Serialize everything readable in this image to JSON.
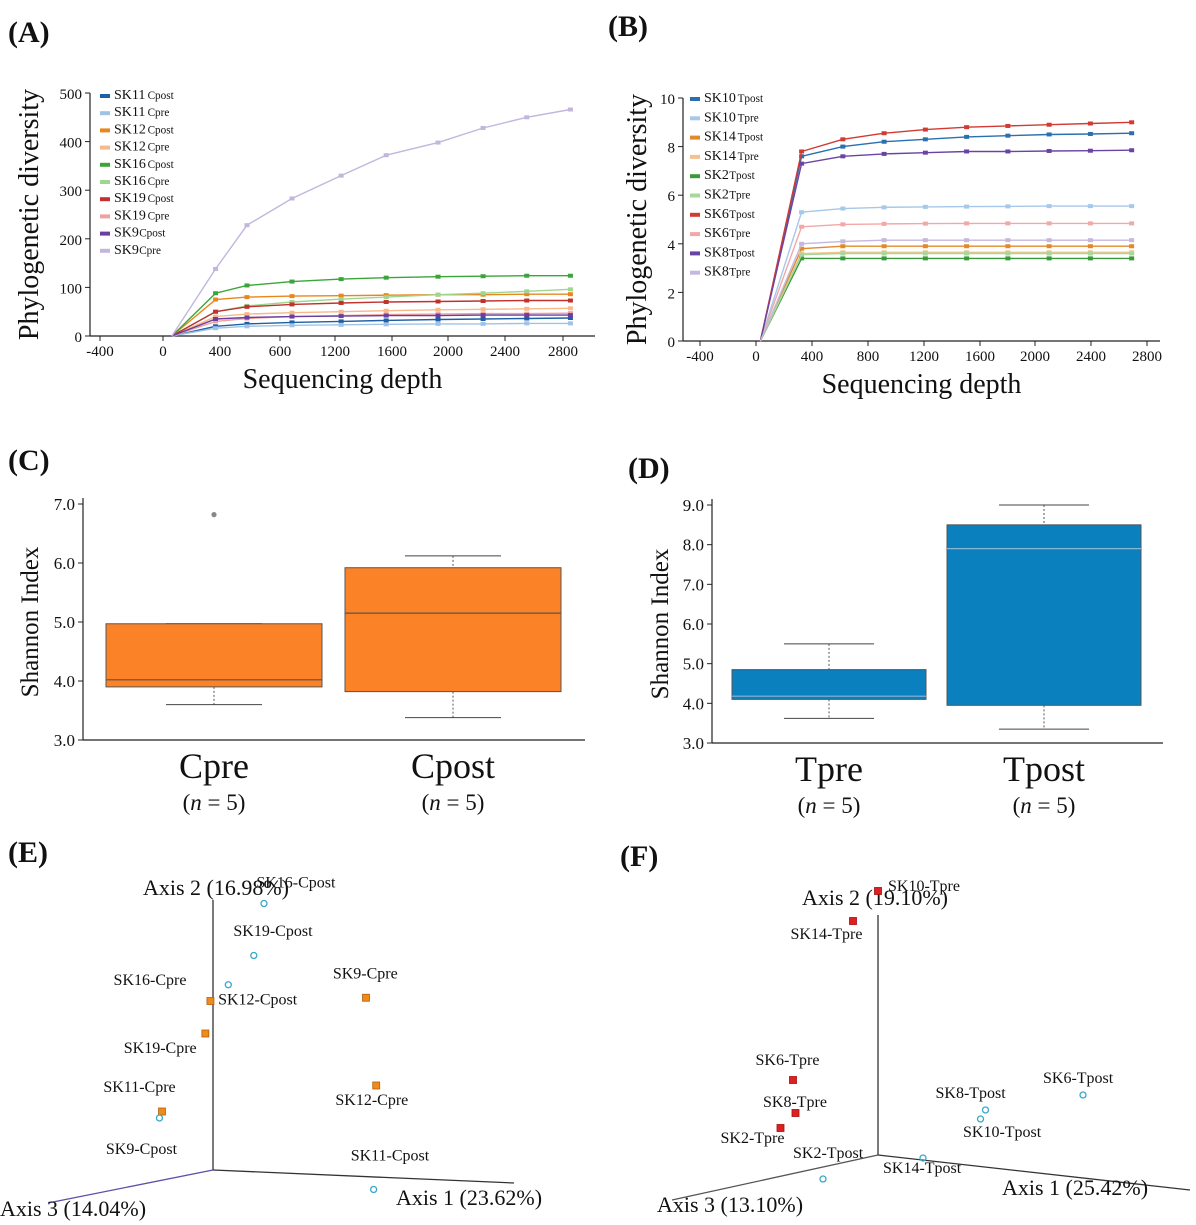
{
  "chart_data": [
    {
      "type": "line",
      "panel_label": "(A)",
      "title": "",
      "xlabel": "Sequencing depth",
      "ylabel": "Phylogenetic diversity",
      "xlim": [
        -600,
        3100
      ],
      "ylim": [
        0,
        500
      ],
      "xticks": [
        -400,
        0,
        400,
        600,
        1200,
        1600,
        2000,
        2400,
        2800
      ],
      "yticks": [
        0,
        100,
        200,
        300,
        400,
        500
      ],
      "x": [
        0,
        320,
        550,
        880,
        1240,
        1570,
        1950,
        2280,
        2600,
        2920
      ],
      "series": [
        {
          "name": "SK11",
          "sub": "Cpost",
          "color": "#1f5fa6",
          "values": [
            0,
            20,
            25,
            28,
            30,
            32,
            34,
            35,
            36,
            37
          ]
        },
        {
          "name": "SK11",
          "sub": "Cpre",
          "color": "#9ec3e6",
          "values": [
            0,
            16,
            20,
            22,
            23,
            24,
            25,
            25,
            26,
            26
          ]
        },
        {
          "name": "SK12",
          "sub": "Cpost",
          "color": "#e8871e",
          "values": [
            0,
            75,
            80,
            82,
            83,
            84,
            85,
            85,
            86,
            86
          ]
        },
        {
          "name": "SK12",
          "sub": "Cpre",
          "color": "#f5b98a",
          "values": [
            0,
            40,
            45,
            48,
            50,
            52,
            54,
            55,
            56,
            57
          ]
        },
        {
          "name": "SK16",
          "sub": "Cpost",
          "color": "#3aa63a",
          "values": [
            0,
            88,
            104,
            112,
            117,
            120,
            122,
            123,
            124,
            124
          ]
        },
        {
          "name": "SK16",
          "sub": "Cpre",
          "color": "#9fd68f",
          "values": [
            0,
            50,
            62,
            70,
            76,
            80,
            85,
            88,
            92,
            96
          ]
        },
        {
          "name": "SK19",
          "sub": "Cpost",
          "color": "#c0322e",
          "values": [
            0,
            50,
            60,
            65,
            68,
            70,
            71,
            72,
            73,
            73
          ]
        },
        {
          "name": "SK19",
          "sub": "Cpre",
          "color": "#f0a0a0",
          "values": [
            0,
            30,
            36,
            40,
            42,
            44,
            45,
            46,
            46,
            47
          ]
        },
        {
          "name": "SK9",
          "sub": "Cpost",
          "color": "#6b3fa0",
          "values": [
            0,
            35,
            38,
            40,
            41,
            42,
            42,
            43,
            43,
            43
          ]
        },
        {
          "name": "SK9",
          "sub": "Cpre",
          "color": "#c2b6dc",
          "values": [
            0,
            138,
            228,
            283,
            330,
            372,
            398,
            428,
            450,
            466
          ]
        }
      ]
    },
    {
      "type": "line",
      "panel_label": "(B)",
      "title": "",
      "xlabel": "Sequencing depth",
      "ylabel": "Phylogenetic diversity",
      "xlim": [
        -600,
        3100
      ],
      "ylim": [
        0,
        10
      ],
      "xticks": [
        -400,
        0,
        400,
        800,
        1200,
        1600,
        2000,
        2400,
        2800
      ],
      "yticks": [
        0,
        2,
        4,
        6,
        8,
        10
      ],
      "x": [
        0,
        320,
        640,
        960,
        1280,
        1600,
        1920,
        2240,
        2560,
        2880
      ],
      "series": [
        {
          "name": "SK10",
          "sub": "Tpost",
          "color": "#2a6fb0",
          "values": [
            0,
            7.6,
            8.0,
            8.2,
            8.3,
            8.4,
            8.45,
            8.5,
            8.52,
            8.55
          ]
        },
        {
          "name": "SK10",
          "sub": "Tpre",
          "color": "#a6c8ea",
          "values": [
            0,
            5.3,
            5.45,
            5.5,
            5.52,
            5.53,
            5.54,
            5.55,
            5.55,
            5.55
          ]
        },
        {
          "name": "SK14",
          "sub": "Tpost",
          "color": "#e08a2c",
          "values": [
            0,
            3.8,
            3.9,
            3.9,
            3.9,
            3.9,
            3.9,
            3.9,
            3.9,
            3.9
          ]
        },
        {
          "name": "SK14",
          "sub": "Tpre",
          "color": "#f3c28f",
          "values": [
            0,
            3.6,
            3.65,
            3.65,
            3.65,
            3.65,
            3.65,
            3.65,
            3.65,
            3.65
          ]
        },
        {
          "name": "SK2",
          "sub": "Tpost",
          "color": "#3a9a3a",
          "values": [
            0,
            3.4,
            3.4,
            3.4,
            3.4,
            3.4,
            3.4,
            3.4,
            3.4,
            3.4
          ]
        },
        {
          "name": "SK2",
          "sub": "Tpre",
          "color": "#a8d79a",
          "values": [
            0,
            3.55,
            3.6,
            3.6,
            3.6,
            3.6,
            3.6,
            3.6,
            3.6,
            3.6
          ]
        },
        {
          "name": "SK6",
          "sub": "Tpost",
          "color": "#d23a34",
          "values": [
            0,
            7.8,
            8.3,
            8.55,
            8.7,
            8.8,
            8.85,
            8.9,
            8.95,
            9.0
          ]
        },
        {
          "name": "SK6",
          "sub": "Tpre",
          "color": "#f2a8a8",
          "values": [
            0,
            4.7,
            4.8,
            4.82,
            4.83,
            4.84,
            4.84,
            4.84,
            4.84,
            4.84
          ]
        },
        {
          "name": "SK8",
          "sub": "Tpost",
          "color": "#6a44a3",
          "values": [
            0,
            7.3,
            7.6,
            7.7,
            7.75,
            7.8,
            7.8,
            7.82,
            7.83,
            7.85
          ]
        },
        {
          "name": "SK8",
          "sub": "Tpre",
          "color": "#c4b8de",
          "values": [
            0,
            4.0,
            4.1,
            4.15,
            4.15,
            4.15,
            4.15,
            4.15,
            4.15,
            4.15
          ]
        }
      ]
    },
    {
      "type": "box",
      "panel_label": "(C)",
      "title": "",
      "xlabel": "",
      "ylabel": "Shannon Index",
      "ylim": [
        3.0,
        7.0
      ],
      "yticks": [
        "3.0",
        "4.0",
        "5.0",
        "6.0",
        "7.0"
      ],
      "color": "#fc8228",
      "groups": [
        {
          "name": "Cpre",
          "n_label": "(",
          "n_var": "n",
          "n_eq": " = 5)",
          "min": 3.6,
          "q1": 3.9,
          "median": 4.02,
          "q3": 4.97,
          "max": 4.97,
          "outliers": [
            6.82
          ]
        },
        {
          "name": "Cpost",
          "n_label": "(",
          "n_var": "n",
          "n_eq": " = 5)",
          "min": 3.38,
          "q1": 3.82,
          "median": 5.15,
          "q3": 5.92,
          "max": 6.12,
          "outliers": []
        }
      ]
    },
    {
      "type": "box",
      "panel_label": "(D)",
      "title": "",
      "xlabel": "",
      "ylabel": "Shannon Index",
      "ylim": [
        3.0,
        9.0
      ],
      "yticks": [
        "3.0",
        "4.0",
        "5.0",
        "6.0",
        "7.0",
        "8.0",
        "9.0"
      ],
      "color": "#0a80be",
      "groups": [
        {
          "name": "Tpre",
          "n_label": "(",
          "n_var": "n",
          "n_eq": " = 5)",
          "min": 3.62,
          "q1": 4.1,
          "median": 4.18,
          "q3": 4.85,
          "max": 5.5,
          "outliers": []
        },
        {
          "name": "Tpost",
          "n_label": "(",
          "n_var": "n",
          "n_eq": " = 5)",
          "min": 3.35,
          "q1": 3.95,
          "median": 7.9,
          "q3": 8.5,
          "max": 9.0,
          "outliers": []
        }
      ]
    },
    {
      "type": "scatter",
      "panel_label": "(E)",
      "title": "",
      "axes": {
        "axis1": "Axis 1 (23.62%)",
        "axis2": "Axis 2 (16.98%)",
        "axis3": "Axis 3 (14.04%)"
      },
      "points": [
        {
          "label": "SK16-Cpost",
          "group": "post",
          "a1": 0.2,
          "a2": 0.82,
          "lx": 0.17,
          "ly": 0.87
        },
        {
          "label": "SK19-Cpost",
          "group": "post",
          "a1": 0.16,
          "a2": 0.66,
          "lx": 0.08,
          "ly": 0.72
        },
        {
          "label": "SK12-Cpost",
          "group": "post",
          "a1": 0.06,
          "a2": 0.57,
          "lx": 0.02,
          "ly": 0.51
        },
        {
          "label": "SK16-Cpre",
          "group": "pre",
          "a1": -0.01,
          "a2": 0.52,
          "lx": -0.39,
          "ly": 0.57
        },
        {
          "label": "SK19-Cpre",
          "group": "pre",
          "a1": -0.03,
          "a2": 0.42,
          "lx": -0.35,
          "ly": 0.36
        },
        {
          "label": "SK11-Cpre",
          "group": "pre",
          "a1": -0.2,
          "a2": 0.18,
          "lx": -0.43,
          "ly": 0.24
        },
        {
          "label": "SK9-Cpost",
          "group": "post",
          "a1": -0.21,
          "a2": 0.16,
          "lx": -0.42,
          "ly": 0.05
        },
        {
          "label": "SK9-Cpre",
          "group": "pre",
          "a1": 0.6,
          "a2": 0.53,
          "lx": 0.47,
          "ly": 0.59
        },
        {
          "label": "SK12-Cpre",
          "group": "pre",
          "a1": 0.64,
          "a2": 0.26,
          "lx": 0.48,
          "ly": 0.2
        },
        {
          "label": "SK11-Cpost",
          "group": "post",
          "a1": 0.63,
          "a2": -0.06,
          "lx": 0.54,
          "ly": 0.03
        }
      ]
    },
    {
      "type": "scatter",
      "panel_label": "(F)",
      "title": "",
      "axes": {
        "axis1": "Axis 1 (25.42%)",
        "axis2": "Axis 2 (19.10%)",
        "axis3": "Axis 3 (13.10%)"
      },
      "points": [
        {
          "label": "SK10-Tpre",
          "group": "pre",
          "a1": 0.0,
          "a2": 0.88,
          "lx": 0.04,
          "ly": 0.88
        },
        {
          "label": "SK14-Tpre",
          "group": "pre",
          "a1": -0.1,
          "a2": 0.78,
          "lx": -0.35,
          "ly": 0.72
        },
        {
          "label": "SK6-Tpre",
          "group": "pre",
          "a1": -0.34,
          "a2": 0.25,
          "lx": -0.49,
          "ly": 0.3
        },
        {
          "label": "SK8-Tpre",
          "group": "pre",
          "a1": -0.33,
          "a2": 0.14,
          "lx": -0.46,
          "ly": 0.16
        },
        {
          "label": "SK2-Tpre",
          "group": "pre",
          "a1": -0.39,
          "a2": 0.09,
          "lx": -0.63,
          "ly": 0.04
        },
        {
          "label": "SK2-Tpost",
          "group": "post",
          "a1": -0.22,
          "a2": -0.08,
          "lx": -0.34,
          "ly": -0.01
        },
        {
          "label": "SK14-Tpost",
          "group": "post",
          "a1": 0.18,
          "a2": -0.01,
          "lx": 0.02,
          "ly": -0.06
        },
        {
          "label": "SK8-Tpost",
          "group": "post",
          "a1": 0.43,
          "a2": 0.15,
          "lx": 0.23,
          "ly": 0.19
        },
        {
          "label": "SK10-Tpost",
          "group": "post",
          "a1": 0.41,
          "a2": 0.12,
          "lx": 0.34,
          "ly": 0.06
        },
        {
          "label": "SK6-Tpost",
          "group": "post",
          "a1": 0.82,
          "a2": 0.2,
          "lx": 0.66,
          "ly": 0.24
        }
      ]
    }
  ]
}
